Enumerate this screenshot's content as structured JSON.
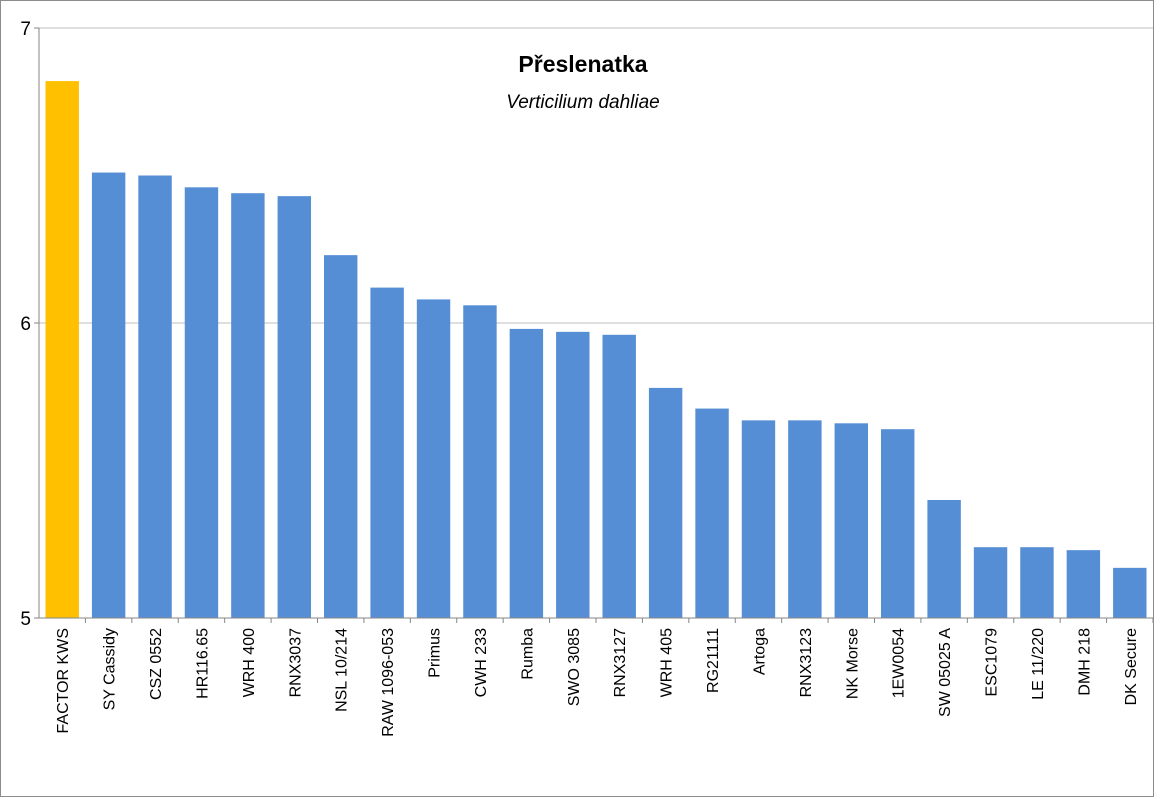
{
  "chart_data": {
    "type": "bar",
    "title": "Přeslenatka",
    "subtitle": "Verticilium dahliae",
    "xlabel": "",
    "ylabel": "",
    "ylim": [
      5,
      7
    ],
    "yticks": [
      5,
      6,
      7
    ],
    "grid": true,
    "legend": "none",
    "highlight_color": "#FFC000",
    "bar_color": "#558ED5",
    "gridline_color": "#BFBFBF",
    "categories": [
      "FACTOR KWS",
      "SY Cassidy",
      "CSZ 0552",
      "HR116.65",
      "WRH 400",
      "RNX3037",
      "NSL 10/214",
      "RAW 1096-053",
      "Primus",
      "CWH 233",
      "Rumba",
      "SWO 3085",
      "RNX3127",
      "WRH 405",
      "RG21111",
      "Artoga",
      "RNX3123",
      "NK Morse",
      "1EW0054",
      "SW 05025 A",
      "ESC1079",
      "LE 11/220",
      "DMH 218",
      "DK Secure"
    ],
    "values": [
      6.82,
      6.51,
      6.5,
      6.46,
      6.44,
      6.43,
      6.23,
      6.12,
      6.08,
      6.06,
      5.98,
      5.97,
      5.96,
      5.78,
      5.71,
      5.67,
      5.67,
      5.66,
      5.64,
      5.4,
      5.24,
      5.24,
      5.23,
      5.17
    ],
    "highlight_index": 0
  }
}
